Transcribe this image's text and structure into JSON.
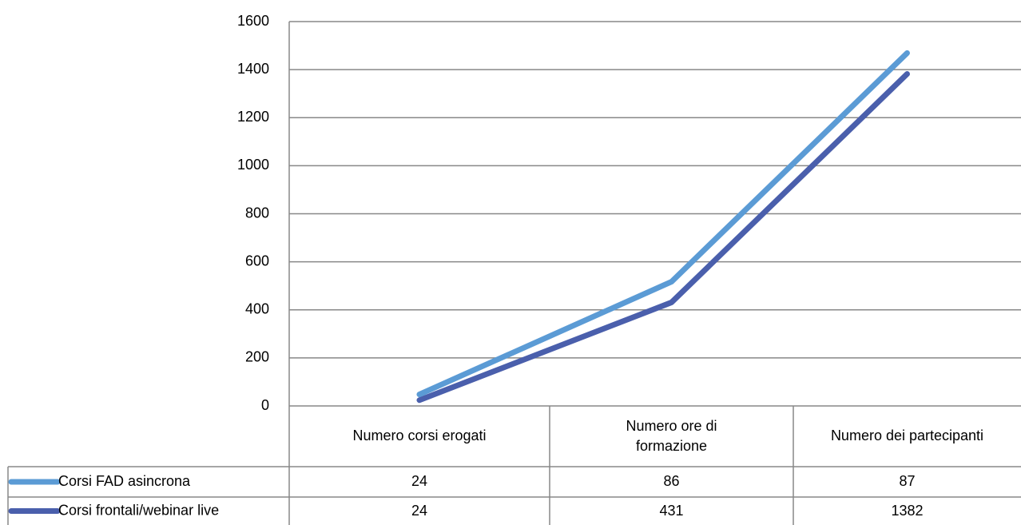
{
  "chart_data": {
    "type": "line",
    "stacked": true,
    "categories": [
      "Numero corsi erogati",
      "Numero ore di formazione",
      "Numero dei partecipanti"
    ],
    "series": [
      {
        "name": "Corsi frontali/webinar live",
        "color": "#4a5fac",
        "values": [
          24,
          431,
          1382
        ]
      },
      {
        "name": "Corsi FAD asincrona",
        "color": "#5b9bd5",
        "values": [
          24,
          86,
          87
        ]
      }
    ],
    "table_order": [
      1,
      0
    ],
    "ylim": [
      0,
      1600
    ],
    "yticks": [
      0,
      200,
      400,
      600,
      800,
      1000,
      1200,
      1400,
      1600
    ],
    "grid": true
  }
}
